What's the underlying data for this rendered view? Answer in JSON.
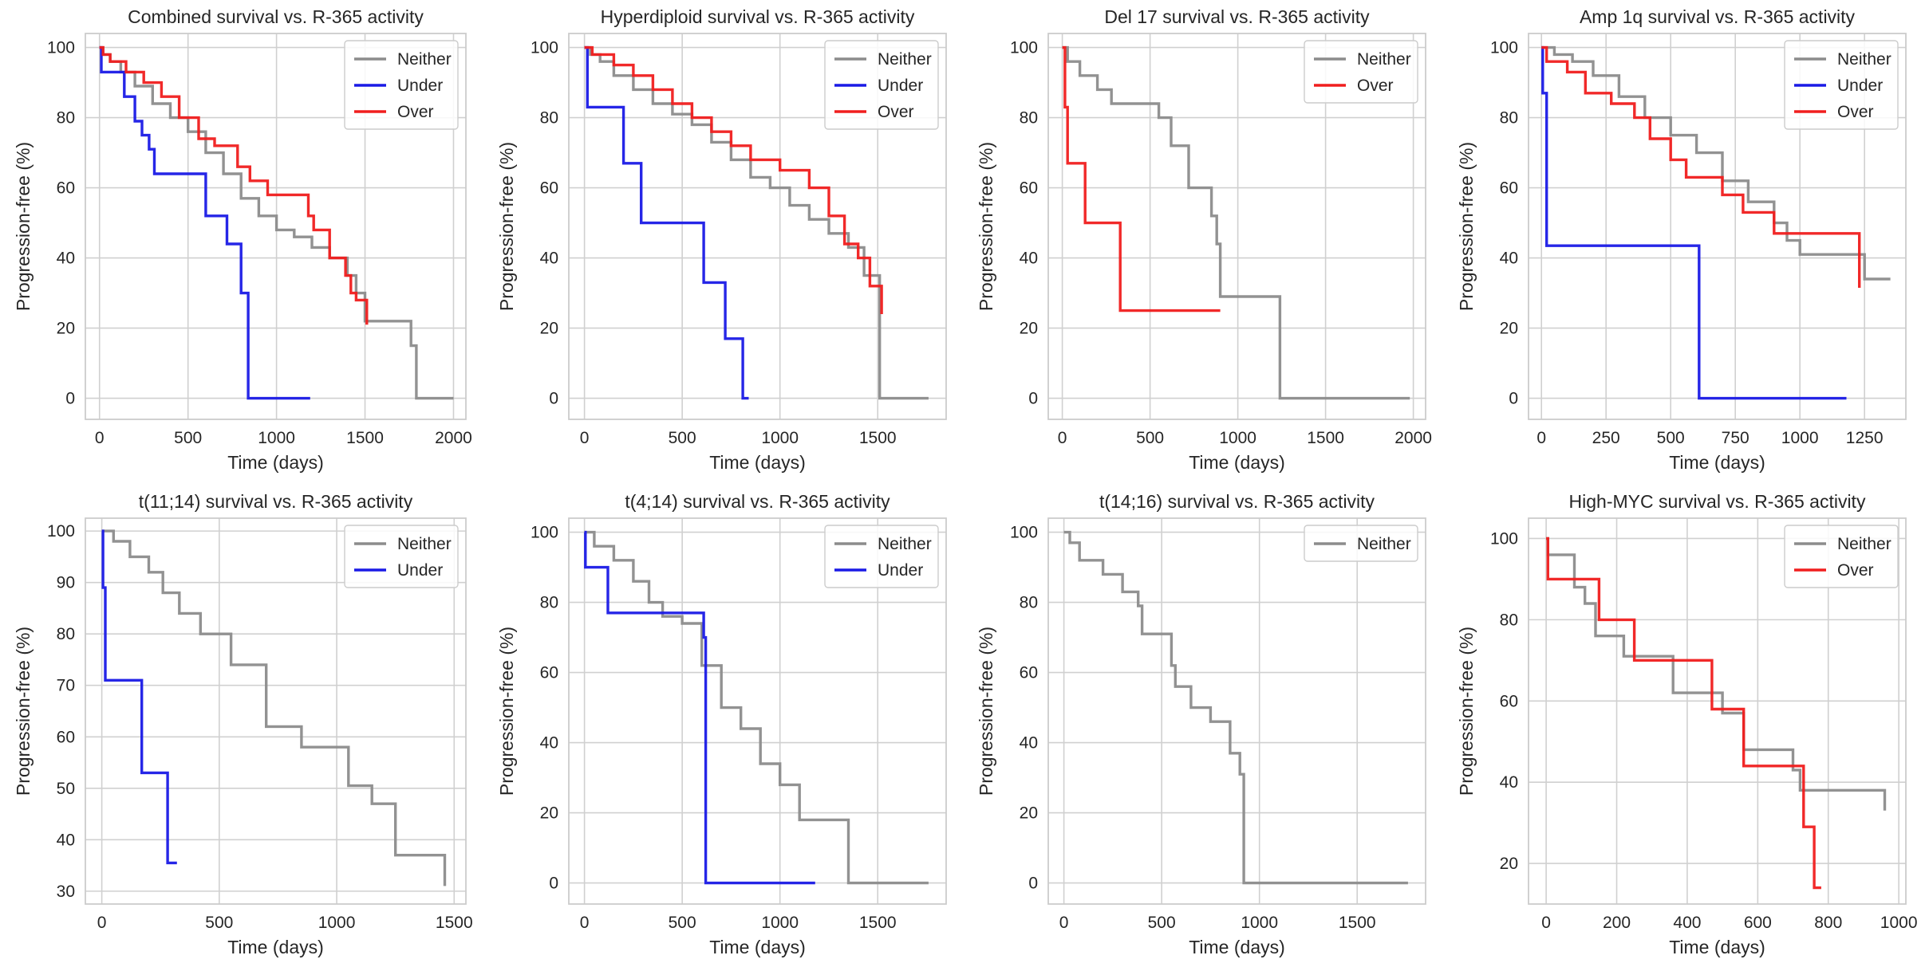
{
  "figure": {
    "colors": {
      "Neither": "#8c8c8c",
      "Under": "#1a1ae6",
      "Over": "#f01e1e",
      "grid": "#d0d0d0",
      "frame": "#cccccc",
      "text": "#262626"
    }
  },
  "chart_data": [
    {
      "type": "line",
      "step": true,
      "title": "Combined survival vs. R-365 activity",
      "xlabel": "Time (days)",
      "ylabel": "Progression-free (%)",
      "xlim": [
        -80,
        2070
      ],
      "ylim": [
        -6,
        104
      ],
      "xticks": [
        0,
        500,
        1000,
        1500,
        2000
      ],
      "yticks": [
        0,
        20,
        40,
        60,
        80,
        100
      ],
      "legend": [
        "Neither",
        "Under",
        "Over"
      ],
      "series": [
        {
          "name": "Neither",
          "x": [
            0,
            20,
            60,
            120,
            200,
            300,
            400,
            500,
            600,
            700,
            800,
            900,
            1000,
            1100,
            1200,
            1300,
            1400,
            1450,
            1500,
            1760,
            1790,
            2000
          ],
          "y": [
            100,
            98,
            96,
            93,
            89,
            84,
            80,
            76,
            70,
            64,
            57,
            52,
            48,
            46,
            43,
            40,
            35,
            30,
            22,
            15,
            0,
            0
          ]
        },
        {
          "name": "Under",
          "x": [
            0,
            10,
            50,
            140,
            200,
            240,
            280,
            310,
            600,
            720,
            800,
            840,
            1190
          ],
          "y": [
            100,
            93,
            93,
            86,
            79,
            75,
            71,
            64,
            52,
            44,
            30,
            0,
            0
          ]
        },
        {
          "name": "Over",
          "x": [
            0,
            20,
            60,
            150,
            250,
            350,
            450,
            560,
            650,
            780,
            850,
            950,
            1180,
            1210,
            1300,
            1390,
            1420,
            1450,
            1510
          ],
          "y": [
            100,
            98,
            96,
            93,
            90,
            86,
            80,
            74,
            72,
            66,
            62,
            58,
            52,
            48,
            40,
            35,
            30,
            28,
            21
          ]
        }
      ]
    },
    {
      "type": "line",
      "step": true,
      "title": "Hyperdiploid survival vs. R-365 activity",
      "xlabel": "Time (days)",
      "ylabel": "Progression-free (%)",
      "xlim": [
        -80,
        1850
      ],
      "ylim": [
        -6,
        104
      ],
      "xticks": [
        0,
        500,
        1000,
        1500
      ],
      "yticks": [
        0,
        20,
        40,
        60,
        80,
        100
      ],
      "legend": [
        "Neither",
        "Under",
        "Over"
      ],
      "series": [
        {
          "name": "Neither",
          "x": [
            0,
            30,
            80,
            150,
            250,
            350,
            450,
            550,
            650,
            750,
            850,
            950,
            1050,
            1150,
            1250,
            1350,
            1430,
            1510,
            1760
          ],
          "y": [
            100,
            98,
            96,
            92,
            88,
            84,
            81,
            78,
            73,
            68,
            63,
            60,
            55,
            51,
            47,
            43,
            35,
            0,
            0
          ]
        },
        {
          "name": "Under",
          "x": [
            0,
            15,
            200,
            290,
            610,
            720,
            810,
            840
          ],
          "y": [
            100,
            83,
            67,
            50,
            33,
            17,
            0,
            0
          ]
        },
        {
          "name": "Over",
          "x": [
            0,
            40,
            150,
            250,
            350,
            450,
            550,
            650,
            750,
            850,
            1000,
            1150,
            1250,
            1330,
            1400,
            1460,
            1520
          ],
          "y": [
            100,
            98,
            95,
            92,
            88,
            84,
            80,
            76,
            72,
            68,
            65,
            60,
            52,
            44,
            40,
            32,
            24
          ]
        }
      ]
    },
    {
      "type": "line",
      "step": true,
      "title": "Del 17 survival vs. R-365 activity",
      "xlabel": "Time (days)",
      "ylabel": "Progression-free (%)",
      "xlim": [
        -80,
        2070
      ],
      "ylim": [
        -6,
        104
      ],
      "xticks": [
        0,
        500,
        1000,
        1500,
        2000
      ],
      "yticks": [
        0,
        20,
        40,
        60,
        80,
        100
      ],
      "legend": [
        "Neither",
        "Over"
      ],
      "series": [
        {
          "name": "Neither",
          "x": [
            0,
            30,
            100,
            200,
            280,
            550,
            620,
            720,
            850,
            880,
            900,
            1240,
            1980
          ],
          "y": [
            100,
            96,
            92,
            88,
            84,
            80,
            72,
            60,
            52,
            44,
            29,
            0,
            0
          ]
        },
        {
          "name": "Over",
          "x": [
            0,
            15,
            30,
            130,
            330,
            900
          ],
          "y": [
            100,
            83,
            67,
            50,
            25,
            25
          ]
        }
      ]
    },
    {
      "type": "line",
      "step": true,
      "title": "Amp 1q survival vs. R-365 activity",
      "xlabel": "Time (days)",
      "ylabel": "Progression-free (%)",
      "xlim": [
        -50,
        1410
      ],
      "ylim": [
        -6,
        104
      ],
      "xticks": [
        0,
        250,
        500,
        750,
        1000,
        1250
      ],
      "yticks": [
        0,
        20,
        40,
        60,
        80,
        100
      ],
      "legend": [
        "Neither",
        "Under",
        "Over"
      ],
      "series": [
        {
          "name": "Neither",
          "x": [
            0,
            50,
            120,
            200,
            300,
            400,
            500,
            600,
            700,
            800,
            900,
            950,
            1000,
            1250,
            1350
          ],
          "y": [
            100,
            98,
            96,
            92,
            86,
            80,
            75,
            70,
            62,
            56,
            50,
            45,
            41,
            34,
            34
          ]
        },
        {
          "name": "Under",
          "x": [
            0,
            5,
            20,
            610,
            1180
          ],
          "y": [
            100,
            87,
            43.5,
            0,
            0
          ]
        },
        {
          "name": "Over",
          "x": [
            0,
            20,
            100,
            170,
            270,
            360,
            420,
            500,
            560,
            700,
            780,
            900,
            1230
          ],
          "y": [
            100,
            96,
            93,
            87,
            84,
            80,
            74,
            68,
            63,
            58,
            53,
            47,
            31.5
          ]
        }
      ]
    },
    {
      "type": "line",
      "step": true,
      "title": "t(11;14) survival vs. R-365 activity",
      "xlabel": "Time (days)",
      "ylabel": "Progression-free (%)",
      "xlim": [
        -70,
        1550
      ],
      "ylim": [
        27.5,
        102.5
      ],
      "xticks": [
        0,
        500,
        1000,
        1500
      ],
      "yticks": [
        30,
        40,
        50,
        60,
        70,
        80,
        90,
        100
      ],
      "legend": [
        "Neither",
        "Under"
      ],
      "series": [
        {
          "name": "Neither",
          "x": [
            0,
            50,
            120,
            200,
            260,
            330,
            420,
            550,
            700,
            850,
            1050,
            1150,
            1250,
            1460
          ],
          "y": [
            100,
            98,
            95,
            92,
            88,
            84,
            80,
            74,
            62,
            58,
            50.5,
            47,
            37,
            31
          ]
        },
        {
          "name": "Under",
          "x": [
            0,
            5,
            15,
            170,
            280,
            320
          ],
          "y": [
            100,
            89,
            71,
            53,
            35.5,
            35.5
          ]
        }
      ]
    },
    {
      "type": "line",
      "step": true,
      "title": "t(4;14) survival vs. R-365 activity",
      "xlabel": "Time (days)",
      "ylabel": "Progression-free (%)",
      "xlim": [
        -80,
        1850
      ],
      "ylim": [
        -6,
        104
      ],
      "xticks": [
        0,
        500,
        1000,
        1500
      ],
      "yticks": [
        0,
        20,
        40,
        60,
        80,
        100
      ],
      "legend": [
        "Neither",
        "Under"
      ],
      "series": [
        {
          "name": "Neither",
          "x": [
            0,
            50,
            150,
            250,
            330,
            400,
            500,
            600,
            700,
            800,
            900,
            1000,
            1100,
            1350,
            1760
          ],
          "y": [
            100,
            96,
            92,
            86,
            80,
            76,
            74,
            62,
            50,
            44,
            34,
            28,
            18,
            0,
            0
          ]
        },
        {
          "name": "Under",
          "x": [
            0,
            5,
            120,
            610,
            620,
            1180
          ],
          "y": [
            100,
            90,
            77,
            70,
            0,
            0
          ]
        }
      ]
    },
    {
      "type": "line",
      "step": true,
      "title": "t(14;16) survival vs. R-365 activity",
      "xlabel": "Time (days)",
      "ylabel": "Progression-free (%)",
      "xlim": [
        -80,
        1850
      ],
      "ylim": [
        -6,
        104
      ],
      "xticks": [
        0,
        500,
        1000,
        1500
      ],
      "yticks": [
        0,
        20,
        40,
        60,
        80,
        100
      ],
      "legend": [
        "Neither"
      ],
      "series": [
        {
          "name": "Neither",
          "x": [
            0,
            30,
            80,
            200,
            300,
            380,
            400,
            550,
            570,
            650,
            750,
            850,
            900,
            920,
            1760
          ],
          "y": [
            100,
            97,
            92,
            88,
            83,
            79,
            71,
            62,
            56,
            50,
            46,
            37,
            31,
            0,
            0
          ]
        }
      ]
    },
    {
      "type": "line",
      "step": true,
      "title": "High-MYC survival vs. R-365 activity",
      "xlabel": "Time (days)",
      "ylabel": "Progression-free (%)",
      "xlim": [
        -50,
        1020
      ],
      "ylim": [
        10,
        105
      ],
      "xticks": [
        0,
        200,
        400,
        600,
        800,
        1000
      ],
      "yticks": [
        20,
        40,
        60,
        80,
        100
      ],
      "legend": [
        "Neither",
        "Over"
      ],
      "series": [
        {
          "name": "Neither",
          "x": [
            0,
            5,
            80,
            110,
            140,
            220,
            360,
            500,
            560,
            700,
            720,
            960
          ],
          "y": [
            100,
            96,
            88,
            84,
            76,
            71,
            62,
            57,
            48,
            43,
            38,
            33
          ]
        },
        {
          "name": "Over",
          "x": [
            0,
            5,
            150,
            250,
            470,
            560,
            730,
            760,
            780
          ],
          "y": [
            100,
            90,
            80,
            70,
            58,
            44,
            29,
            14,
            14
          ]
        }
      ]
    }
  ]
}
